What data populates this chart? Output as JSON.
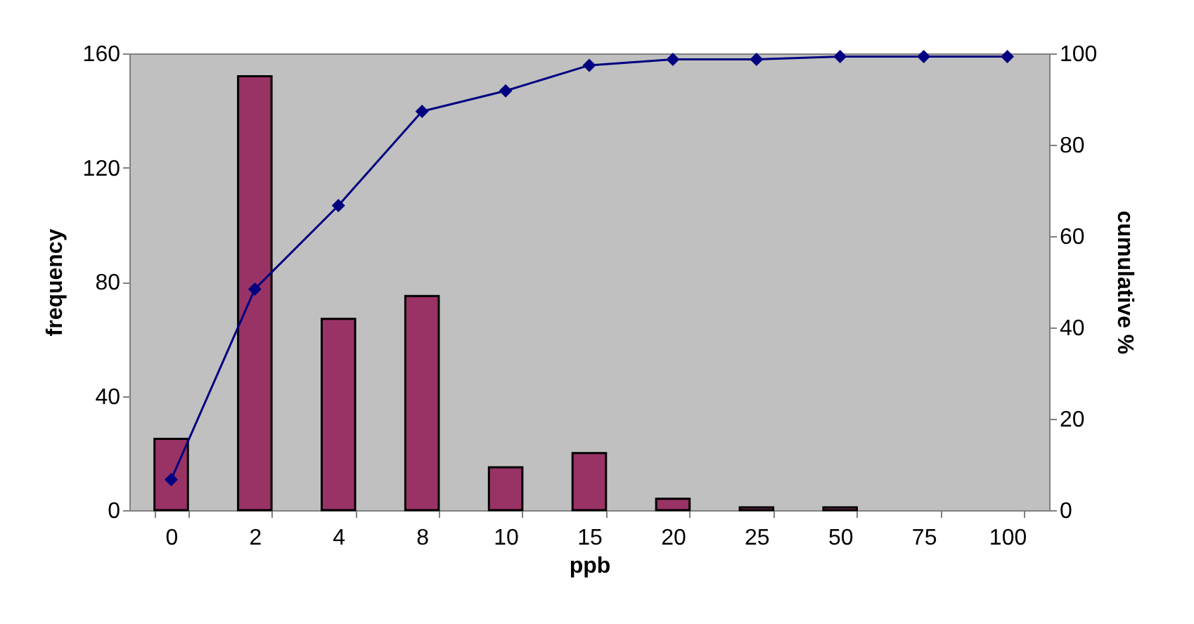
{
  "chart_data": {
    "type": "bar",
    "xlabel": "ppb",
    "ylabel": "frequency",
    "y2label": "cumulative %",
    "categories": [
      "0",
      "2",
      "4",
      "8",
      "10",
      "15",
      "20",
      "25",
      "50",
      "75",
      "100"
    ],
    "series": [
      {
        "color": "#993366",
        "values": [
          25,
          152,
          67,
          75,
          15,
          20,
          4,
          1,
          1,
          null,
          null
        ]
      },
      {
        "type": "line",
        "axis": "y2",
        "color": "#000080",
        "marker": "diamond",
        "values": [
          6.7,
          48.4,
          66.7,
          87.3,
          91.8,
          97.4,
          98.7,
          98.7,
          99.3,
          99.3,
          99.3
        ]
      }
    ],
    "ylim": [
      0,
      160
    ],
    "yticks": [
      0,
      40,
      80,
      120,
      160
    ],
    "y2lim": [
      0,
      100
    ],
    "y2ticks": [
      0,
      20,
      40,
      60,
      80,
      100
    ],
    "grid": false
  }
}
